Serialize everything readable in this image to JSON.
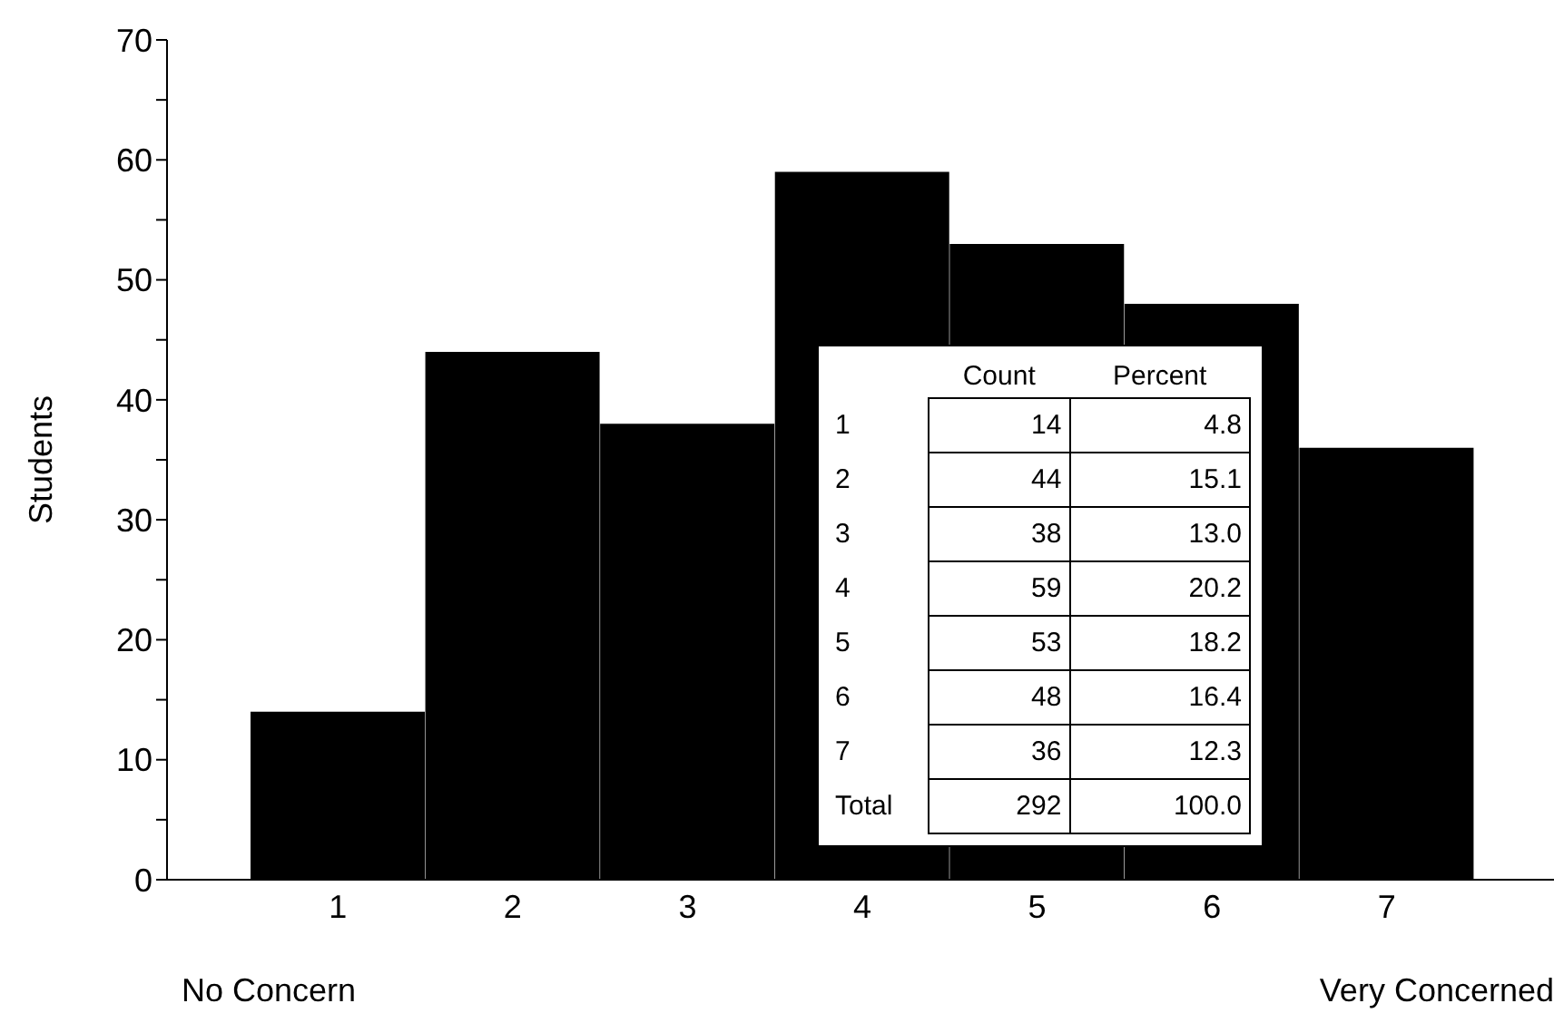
{
  "chart_data": {
    "type": "bar",
    "ylabel": "Students",
    "categories": [
      "1",
      "2",
      "3",
      "4",
      "5",
      "6",
      "7"
    ],
    "values": [
      14,
      44,
      38,
      59,
      53,
      48,
      36
    ],
    "color": "#000000",
    "ylim": [
      0,
      70
    ],
    "yticks": [
      0,
      {
        "value": 5,
        "label": null
      },
      10,
      {
        "value": 15,
        "label": null
      },
      20,
      {
        "value": 25,
        "label": null
      },
      30,
      {
        "value": 35,
        "label": null
      },
      40,
      {
        "value": 45,
        "label": null
      },
      50,
      {
        "value": 55,
        "label": null
      },
      60,
      {
        "value": 65,
        "label": null
      },
      70
    ],
    "annotations": [
      "No Concern",
      "Very Concerned",
      "Count",
      "Percent",
      "Total",
      "292",
      "100.0",
      "4.8",
      "15.1",
      "13.0",
      "20.2",
      "18.2",
      "16.4",
      "12.3",
      "14",
      "44",
      "38",
      "59",
      "53",
      "48",
      "36"
    ],
    "grid": false,
    "legend": false
  }
}
